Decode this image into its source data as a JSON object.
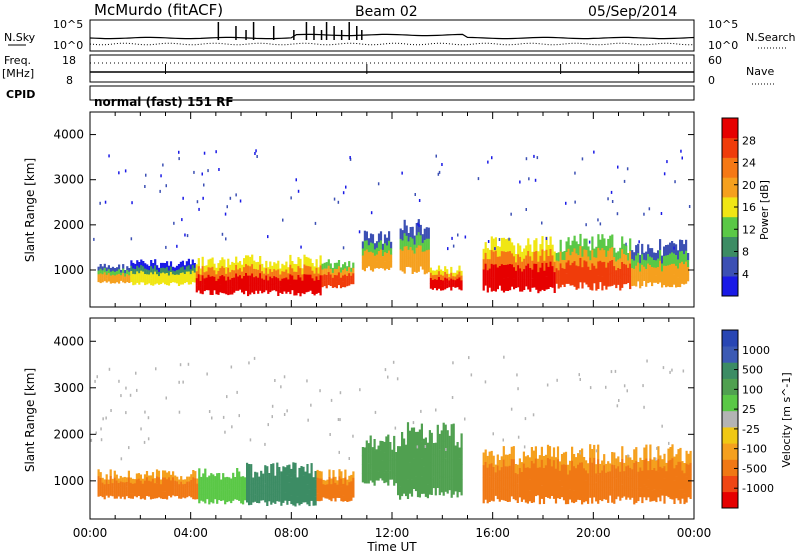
{
  "header": {
    "station": "McMurdo (fitACF)",
    "beam": "Beam 02",
    "date": "05/Sep/2014"
  },
  "noise_panel": {
    "left_label": "N.Sky",
    "right_label": "N.Search",
    "tick_top": "10^5",
    "tick_bottom": "10^0"
  },
  "freq_panel": {
    "left_label_1": "Freq.",
    "left_label_2": "[MHz]",
    "right_label": "Nave",
    "left_tick_top": "18",
    "left_tick_bottom": "8",
    "right_tick_top": "60",
    "right_tick_bottom": "0"
  },
  "cpid": {
    "label": "CPID",
    "value": "normal (fast) 151 RF"
  },
  "axes": {
    "xlabel": "Time UT",
    "ylabel": "Slant Range [km]",
    "x_ticks": [
      "00:00",
      "04:00",
      "08:00",
      "12:00",
      "16:00",
      "20:00",
      "00:00"
    ],
    "y_ticks": [
      "1000",
      "2000",
      "3000",
      "4000"
    ]
  },
  "power_colorbar": {
    "title": "Power [dB]",
    "labels": [
      "4",
      "8",
      "12",
      "16",
      "20",
      "24",
      "28"
    ],
    "colors": [
      "#1a1ae6",
      "#3c50b4",
      "#3c8c64",
      "#5ac846",
      "#f0e614",
      "#f5a01e",
      "#f57814",
      "#f03c0a",
      "#e60000"
    ]
  },
  "velocity_colorbar": {
    "title": "Velocity [m s^-1]",
    "labels": [
      "1000",
      "500",
      "100",
      "25",
      "-25",
      "-100",
      "-500",
      "-1000"
    ],
    "colors": [
      "#2846b4",
      "#3c5ab4",
      "#3c8c64",
      "#50a050",
      "#5ac846",
      "#b4b4b4",
      "#f0c814",
      "#f5a01e",
      "#f07814",
      "#f04614",
      "#e60000"
    ]
  },
  "chart_data": {
    "type": "heatmap",
    "x_range_hours": [
      0,
      24
    ],
    "y_range_km": [
      180,
      4500
    ],
    "power_regions": [
      {
        "t0": 0.3,
        "t1": 1.6,
        "r0": 700,
        "r1": 1150,
        "level": 20
      },
      {
        "t0": 1.6,
        "t1": 4.2,
        "r0": 650,
        "r1": 1250,
        "level": 16
      },
      {
        "t0": 4.2,
        "t1": 6.0,
        "r0": 450,
        "r1": 1300,
        "level": 28
      },
      {
        "t0": 6.0,
        "t1": 9.2,
        "r0": 420,
        "r1": 1350,
        "level": 28
      },
      {
        "t0": 9.2,
        "t1": 10.5,
        "r0": 600,
        "r1": 1250,
        "level": 24
      },
      {
        "t0": 10.8,
        "t1": 12.0,
        "r0": 950,
        "r1": 1900,
        "level": 20
      },
      {
        "t0": 12.3,
        "t1": 13.5,
        "r0": 900,
        "r1": 2150,
        "level": 20
      },
      {
        "t0": 13.5,
        "t1": 14.8,
        "r0": 550,
        "r1": 1100,
        "level": 28
      },
      {
        "t0": 15.6,
        "t1": 18.5,
        "r0": 480,
        "r1": 1750,
        "level": 28
      },
      {
        "t0": 18.5,
        "t1": 21.5,
        "r0": 550,
        "r1": 1800,
        "level": 24
      },
      {
        "t0": 21.5,
        "t1": 23.8,
        "r0": 600,
        "r1": 1700,
        "level": 20
      }
    ],
    "velocity_regions": [
      {
        "t0": 0.3,
        "t1": 4.3,
        "r0": 600,
        "r1": 1250,
        "value": -100
      },
      {
        "t0": 4.3,
        "t1": 6.2,
        "r0": 500,
        "r1": 1300,
        "value": 50
      },
      {
        "t0": 6.2,
        "t1": 9.0,
        "r0": 450,
        "r1": 1400,
        "value": 300
      },
      {
        "t0": 9.0,
        "t1": 10.5,
        "r0": 550,
        "r1": 1250,
        "value": -100
      },
      {
        "t0": 10.8,
        "t1": 12.2,
        "r0": 900,
        "r1": 2000,
        "value": 200
      },
      {
        "t0": 12.2,
        "t1": 14.8,
        "r0": 600,
        "r1": 2300,
        "value": 150
      },
      {
        "t0": 15.6,
        "t1": 23.9,
        "r0": 500,
        "r1": 1800,
        "value": -100
      }
    ]
  }
}
